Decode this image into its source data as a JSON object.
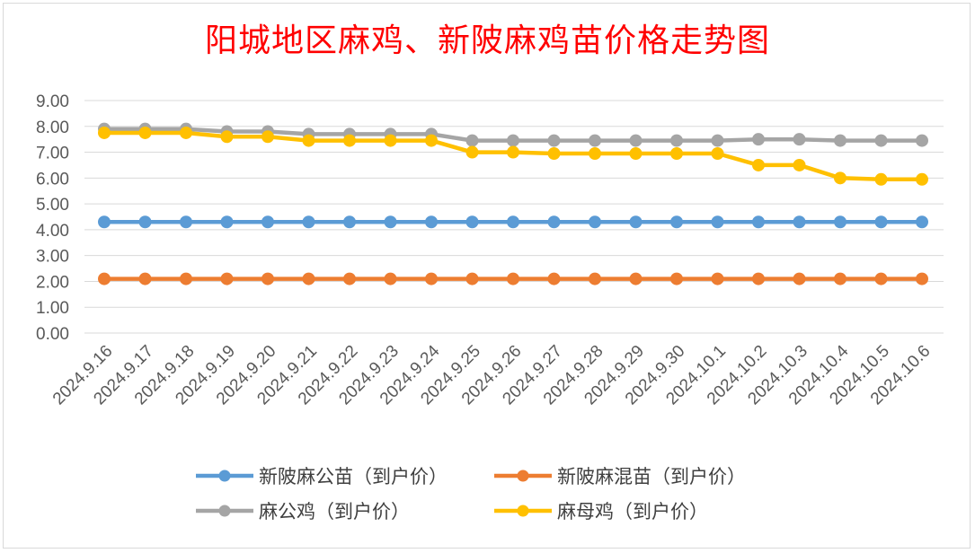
{
  "chart_data": {
    "type": "line",
    "title": "阳城地区麻鸡、新陂麻鸡苗价格走势图",
    "categories": [
      "2024.9.16",
      "2024.9.17",
      "2024.9.18",
      "2024.9.19",
      "2024.9.20",
      "2024.9.21",
      "2024.9.22",
      "2024.9.23",
      "2024.9.24",
      "2024.9.25",
      "2024.9.26",
      "2024.9.27",
      "2024.9.28",
      "2024.9.29",
      "2024.9.30",
      "2024.10.1",
      "2024.10.2",
      "2024.10.3",
      "2024.10.4",
      "2024.10.5",
      "2024.10.6"
    ],
    "ylim": [
      0,
      9
    ],
    "yticks": [
      "0.00",
      "1.00",
      "2.00",
      "3.00",
      "4.00",
      "5.00",
      "6.00",
      "7.00",
      "8.00",
      "9.00"
    ],
    "grid": true,
    "legend_position": "bottom",
    "series": [
      {
        "name": "新陂麻公苗（到户价）",
        "color": "#5b9bd5",
        "values": [
          4.3,
          4.3,
          4.3,
          4.3,
          4.3,
          4.3,
          4.3,
          4.3,
          4.3,
          4.3,
          4.3,
          4.3,
          4.3,
          4.3,
          4.3,
          4.3,
          4.3,
          4.3,
          4.3,
          4.3,
          4.3
        ]
      },
      {
        "name": "新陂麻混苗（到户价）",
        "color": "#ed7d31",
        "values": [
          2.1,
          2.1,
          2.1,
          2.1,
          2.1,
          2.1,
          2.1,
          2.1,
          2.1,
          2.1,
          2.1,
          2.1,
          2.1,
          2.1,
          2.1,
          2.1,
          2.1,
          2.1,
          2.1,
          2.1,
          2.1
        ]
      },
      {
        "name": "麻公鸡（到户价）",
        "color": "#a5a5a5",
        "values": [
          7.9,
          7.9,
          7.9,
          7.8,
          7.8,
          7.7,
          7.7,
          7.7,
          7.7,
          7.45,
          7.45,
          7.45,
          7.45,
          7.45,
          7.45,
          7.45,
          7.5,
          7.5,
          7.45,
          7.45,
          7.45
        ]
      },
      {
        "name": "麻母鸡（到户价）",
        "color": "#ffc000",
        "values": [
          7.75,
          7.75,
          7.75,
          7.6,
          7.6,
          7.45,
          7.45,
          7.45,
          7.45,
          7.0,
          7.0,
          6.95,
          6.95,
          6.95,
          6.95,
          6.95,
          6.5,
          6.5,
          6.0,
          5.95,
          5.95
        ]
      }
    ]
  }
}
